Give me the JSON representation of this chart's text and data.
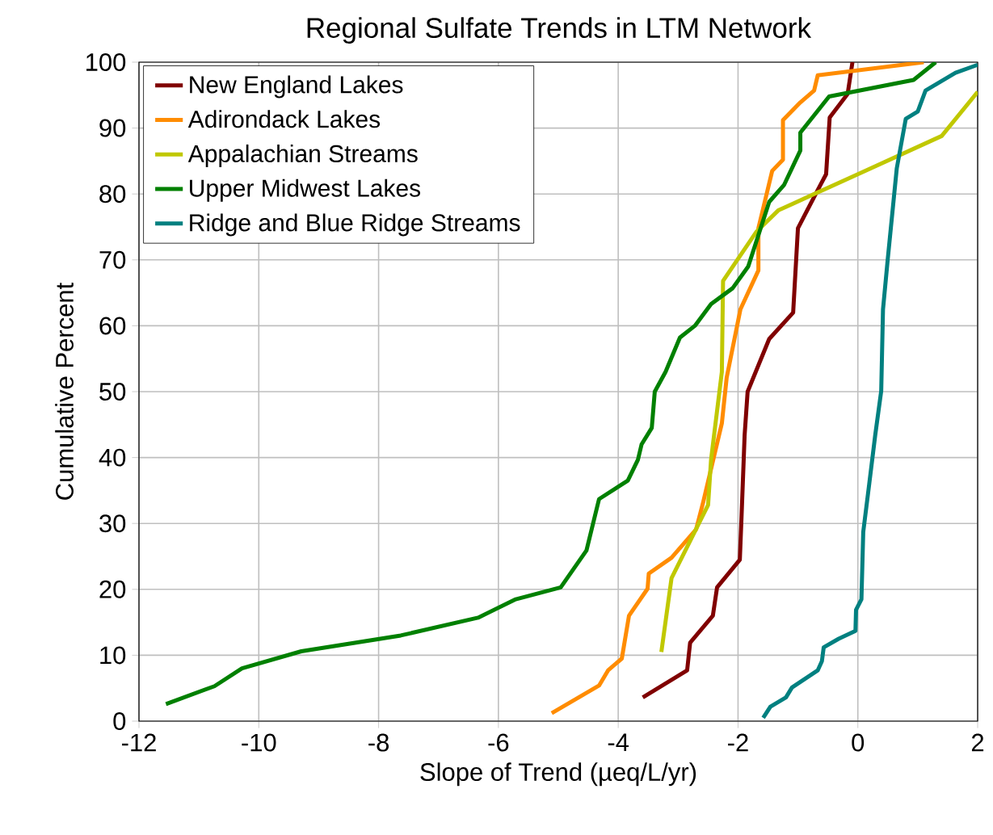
{
  "chart_data": {
    "type": "line",
    "title": "Regional Sulfate Trends in LTM Network",
    "xlabel": "Slope of Trend (µeq/L/yr)",
    "ylabel": "Cumulative Percent",
    "xlim": [
      -12,
      2
    ],
    "xticks": [
      -12,
      -10,
      -8,
      -6,
      -4,
      -2,
      0,
      2
    ],
    "ylim": [
      0,
      100
    ],
    "yticks": [
      0,
      10,
      20,
      30,
      40,
      50,
      60,
      70,
      80,
      90,
      100
    ],
    "grid": true,
    "legend": "top left",
    "marker": "none",
    "line_style": "solid",
    "series": [
      {
        "name": "New England Lakes",
        "color": "#800000",
        "x": [
          -3.59,
          -2.85,
          -2.8,
          -2.42,
          -2.35,
          -1.97,
          -1.94,
          -1.89,
          -1.84,
          -1.48,
          -1.08,
          -1.0,
          -0.67,
          -0.53,
          -0.47,
          -0.17,
          -0.09
        ],
        "values": [
          3.6,
          7.7,
          11.9,
          16,
          20.3,
          24.5,
          31.4,
          43.4,
          50,
          58,
          62,
          74.8,
          80.6,
          83,
          91.6,
          95.2,
          100
        ]
      },
      {
        "name": "Adirondack Lakes",
        "color": "#ff8c00",
        "x": [
          -5.11,
          -4.32,
          -4.17,
          -3.94,
          -3.82,
          -3.51,
          -3.49,
          -3.11,
          -2.7,
          -2.58,
          -2.27,
          -2.19,
          -1.96,
          -1.66,
          -1.66,
          -1.43,
          -1.25,
          -1.25,
          -0.96,
          -0.73,
          -0.67,
          1.1
        ],
        "values": [
          1.2,
          5.4,
          7.7,
          9.5,
          16,
          20.1,
          22.4,
          24.8,
          29.1,
          33.3,
          45.2,
          52.1,
          62.5,
          68.4,
          74.8,
          83.5,
          85.2,
          91.2,
          93.9,
          95.7,
          98,
          100
        ]
      },
      {
        "name": "Appalachian Streams",
        "color": "#c0c800",
        "x": [
          -3.28,
          -3.11,
          -2.5,
          -2.45,
          -2.27,
          -2.25,
          -1.69,
          -1.33,
          0,
          1.4,
          2.0
        ],
        "values": [
          10.5,
          21.7,
          32.8,
          39.7,
          53,
          66.8,
          74.3,
          77.5,
          83,
          88.8,
          95.5
        ]
      },
      {
        "name": "Upper Midwest Lakes",
        "color": "#008000",
        "x": [
          -11.55,
          -10.74,
          -10.28,
          -9.29,
          -7.63,
          -6.34,
          -5.71,
          -4.96,
          -4.53,
          -4.32,
          -3.84,
          -3.67,
          -3.61,
          -3.44,
          -3.39,
          -3.21,
          -2.97,
          -2.72,
          -2.45,
          -2.09,
          -1.83,
          -1.48,
          -1.23,
          -0.96,
          -0.96,
          -0.48,
          0.93,
          1.3
        ],
        "values": [
          2.6,
          5.3,
          8,
          10.6,
          13,
          15.7,
          18.5,
          20.3,
          25.9,
          33.7,
          36.5,
          39.7,
          42,
          44.5,
          50,
          53,
          58.2,
          60,
          63.3,
          65.7,
          69,
          78.8,
          81.4,
          86.6,
          89.3,
          94.8,
          97.3,
          100
        ]
      },
      {
        "name": "Ridge and Blue Ridge Streams",
        "color": "#008080",
        "x": [
          -1.58,
          -1.46,
          -1.2,
          -1.1,
          -0.67,
          -0.6,
          -0.57,
          -0.32,
          -0.04,
          -0.03,
          0.06,
          0.09,
          0.19,
          0.29,
          0.39,
          0.42,
          0.5,
          0.65,
          0.8,
          1.0,
          1.13,
          1.63,
          2.0
        ],
        "values": [
          0.5,
          2.2,
          3.6,
          5.1,
          7.7,
          9.1,
          11.2,
          12.5,
          13.7,
          16.9,
          18.5,
          28.7,
          36,
          43.4,
          50.1,
          62.5,
          70.2,
          83.9,
          91.4,
          92.5,
          95.7,
          98.4,
          99.6
        ]
      }
    ]
  }
}
